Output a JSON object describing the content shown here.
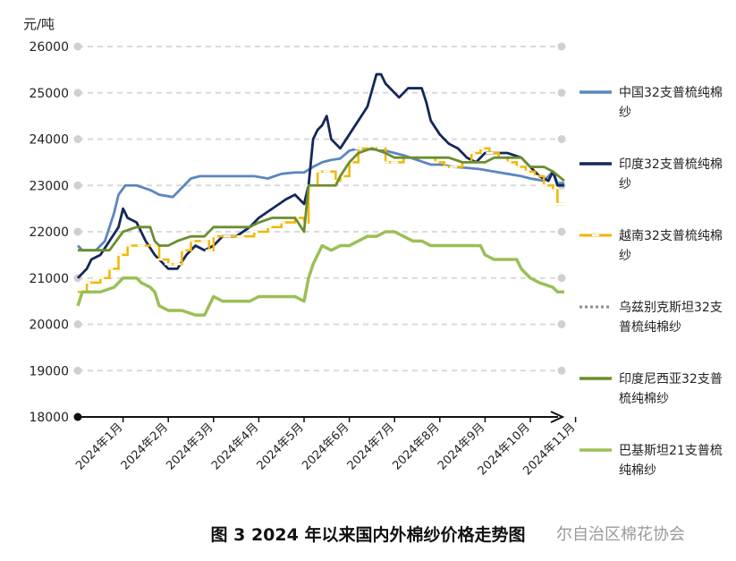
{
  "caption": "图 3 2024 年以来国内外棉纱价格走势图",
  "watermark": "尔自治区棉花协会",
  "chart_data": {
    "type": "line",
    "unit_label": "元/吨",
    "ylim": [
      18000,
      26000
    ],
    "y_ticks": [
      18000,
      19000,
      20000,
      21000,
      22000,
      23000,
      24000,
      25000,
      26000
    ],
    "x_tick_labels": [
      "2024年1月",
      "2024年2月",
      "2024年3月",
      "2024年4月",
      "2024年5月",
      "2024年6月",
      "2024年7月",
      "2024年8月",
      "2024年9月",
      "2024年10月",
      "2024年11月"
    ],
    "x_range": [
      0,
      10.8
    ],
    "grid": true,
    "legend_position": "right",
    "series": [
      {
        "name": "中国32支普梳纯棉纱",
        "color": "#5b86c1",
        "style": "solid",
        "points": [
          [
            0,
            21700
          ],
          [
            0.1,
            21600
          ],
          [
            0.4,
            21600
          ],
          [
            0.6,
            21800
          ],
          [
            0.8,
            22400
          ],
          [
            0.9,
            22800
          ],
          [
            1.05,
            23000
          ],
          [
            1.3,
            23000
          ],
          [
            1.6,
            22900
          ],
          [
            1.8,
            22800
          ],
          [
            2.1,
            22750
          ],
          [
            2.3,
            22950
          ],
          [
            2.5,
            23150
          ],
          [
            2.7,
            23200
          ],
          [
            3.0,
            23200
          ],
          [
            3.3,
            23200
          ],
          [
            3.6,
            23200
          ],
          [
            3.9,
            23200
          ],
          [
            4.2,
            23150
          ],
          [
            4.5,
            23250
          ],
          [
            4.8,
            23280
          ],
          [
            5.0,
            23280
          ],
          [
            5.2,
            23400
          ],
          [
            5.4,
            23500
          ],
          [
            5.6,
            23550
          ],
          [
            5.8,
            23580
          ],
          [
            6.0,
            23750
          ],
          [
            6.2,
            23800
          ],
          [
            6.5,
            23780
          ],
          [
            6.8,
            23750
          ],
          [
            7.0,
            23700
          ],
          [
            7.2,
            23650
          ],
          [
            7.5,
            23550
          ],
          [
            7.8,
            23450
          ],
          [
            8.0,
            23450
          ],
          [
            8.3,
            23400
          ],
          [
            8.6,
            23380
          ],
          [
            8.9,
            23350
          ],
          [
            9.2,
            23300
          ],
          [
            9.5,
            23250
          ],
          [
            9.8,
            23200
          ],
          [
            10.0,
            23150
          ],
          [
            10.3,
            23100
          ],
          [
            10.5,
            23300
          ],
          [
            10.6,
            23050
          ],
          [
            10.75,
            23050
          ]
        ]
      },
      {
        "name": "印度32支普梳纯棉纱",
        "color": "#14285a",
        "style": "solid",
        "points": [
          [
            0,
            21000
          ],
          [
            0.1,
            21100
          ],
          [
            0.2,
            21200
          ],
          [
            0.3,
            21400
          ],
          [
            0.5,
            21500
          ],
          [
            0.7,
            21800
          ],
          [
            0.9,
            22100
          ],
          [
            1.0,
            22500
          ],
          [
            1.1,
            22300
          ],
          [
            1.3,
            22200
          ],
          [
            1.5,
            21800
          ],
          [
            1.7,
            21500
          ],
          [
            1.8,
            21400
          ],
          [
            2.0,
            21200
          ],
          [
            2.2,
            21200
          ],
          [
            2.4,
            21500
          ],
          [
            2.6,
            21700
          ],
          [
            2.8,
            21600
          ],
          [
            3.0,
            21700
          ],
          [
            3.2,
            21900
          ],
          [
            3.5,
            21900
          ],
          [
            3.8,
            22100
          ],
          [
            4.0,
            22300
          ],
          [
            4.3,
            22500
          ],
          [
            4.6,
            22700
          ],
          [
            4.8,
            22800
          ],
          [
            5.0,
            22600
          ],
          [
            5.1,
            23000
          ],
          [
            5.2,
            24000
          ],
          [
            5.3,
            24200
          ],
          [
            5.4,
            24300
          ],
          [
            5.5,
            24500
          ],
          [
            5.6,
            24000
          ],
          [
            5.7,
            23900
          ],
          [
            5.8,
            23800
          ],
          [
            6.0,
            24100
          ],
          [
            6.2,
            24400
          ],
          [
            6.4,
            24700
          ],
          [
            6.6,
            25400
          ],
          [
            6.7,
            25400
          ],
          [
            6.8,
            25200
          ],
          [
            7.0,
            25000
          ],
          [
            7.1,
            24900
          ],
          [
            7.3,
            25100
          ],
          [
            7.6,
            25100
          ],
          [
            7.7,
            24800
          ],
          [
            7.8,
            24400
          ],
          [
            8.0,
            24100
          ],
          [
            8.2,
            23900
          ],
          [
            8.4,
            23800
          ],
          [
            8.6,
            23600
          ],
          [
            8.8,
            23500
          ],
          [
            9.0,
            23700
          ],
          [
            9.2,
            23700
          ],
          [
            9.5,
            23700
          ],
          [
            9.8,
            23600
          ],
          [
            10.0,
            23400
          ],
          [
            10.2,
            23200
          ],
          [
            10.4,
            23100
          ],
          [
            10.5,
            23300
          ],
          [
            10.6,
            23000
          ],
          [
            10.75,
            23000
          ]
        ]
      },
      {
        "name": "越南32支普梳纯棉纱",
        "color": "#f2b700",
        "style": "step-marker",
        "points": [
          [
            0,
            20700
          ],
          [
            0.2,
            20900
          ],
          [
            0.5,
            21000
          ],
          [
            0.7,
            21200
          ],
          [
            0.9,
            21500
          ],
          [
            1.1,
            21700
          ],
          [
            1.4,
            21700
          ],
          [
            1.7,
            21700
          ],
          [
            1.8,
            21400
          ],
          [
            2.0,
            21300
          ],
          [
            2.2,
            21300
          ],
          [
            2.3,
            21600
          ],
          [
            2.5,
            21800
          ],
          [
            2.8,
            21800
          ],
          [
            2.9,
            21600
          ],
          [
            3.0,
            21900
          ],
          [
            3.3,
            21900
          ],
          [
            3.6,
            21900
          ],
          [
            3.9,
            22000
          ],
          [
            4.2,
            22100
          ],
          [
            4.5,
            22200
          ],
          [
            4.8,
            22300
          ],
          [
            5.0,
            22200
          ],
          [
            5.1,
            23000
          ],
          [
            5.3,
            23300
          ],
          [
            5.5,
            23300
          ],
          [
            5.7,
            23100
          ],
          [
            5.8,
            23200
          ],
          [
            6.0,
            23500
          ],
          [
            6.2,
            23800
          ],
          [
            6.5,
            23800
          ],
          [
            6.7,
            23800
          ],
          [
            6.8,
            23500
          ],
          [
            7.0,
            23500
          ],
          [
            7.2,
            23600
          ],
          [
            7.5,
            23600
          ],
          [
            7.7,
            23600
          ],
          [
            7.9,
            23500
          ],
          [
            8.1,
            23400
          ],
          [
            8.3,
            23400
          ],
          [
            8.5,
            23500
          ],
          [
            8.7,
            23700
          ],
          [
            8.9,
            23800
          ],
          [
            9.1,
            23700
          ],
          [
            9.3,
            23600
          ],
          [
            9.5,
            23500
          ],
          [
            9.7,
            23400
          ],
          [
            9.9,
            23300
          ],
          [
            10.1,
            23200
          ],
          [
            10.3,
            23000
          ],
          [
            10.5,
            22900
          ],
          [
            10.6,
            22600
          ],
          [
            10.75,
            22600
          ]
        ]
      },
      {
        "name": "乌兹别克斯坦32支普梳纯棉纱",
        "color": "#8c8c8c",
        "style": "dotted",
        "points": []
      },
      {
        "name": "印度尼西亚32支普梳纯棉纱",
        "color": "#6b8e2f",
        "style": "solid",
        "points": [
          [
            0,
            21600
          ],
          [
            0.3,
            21600
          ],
          [
            0.5,
            21600
          ],
          [
            0.7,
            21600
          ],
          [
            1.0,
            22000
          ],
          [
            1.3,
            22100
          ],
          [
            1.6,
            22100
          ],
          [
            1.7,
            21800
          ],
          [
            1.8,
            21700
          ],
          [
            2.0,
            21700
          ],
          [
            2.2,
            21800
          ],
          [
            2.5,
            21900
          ],
          [
            2.8,
            21900
          ],
          [
            3.0,
            22100
          ],
          [
            3.3,
            22100
          ],
          [
            3.6,
            22100
          ],
          [
            3.8,
            22100
          ],
          [
            4.0,
            22200
          ],
          [
            4.3,
            22300
          ],
          [
            4.6,
            22300
          ],
          [
            4.8,
            22300
          ],
          [
            5.0,
            22000
          ],
          [
            5.1,
            23000
          ],
          [
            5.3,
            23000
          ],
          [
            5.5,
            23000
          ],
          [
            5.7,
            23000
          ],
          [
            5.8,
            23200
          ],
          [
            6.0,
            23500
          ],
          [
            6.2,
            23700
          ],
          [
            6.5,
            23800
          ],
          [
            6.8,
            23700
          ],
          [
            7.0,
            23600
          ],
          [
            7.3,
            23600
          ],
          [
            7.6,
            23600
          ],
          [
            7.9,
            23600
          ],
          [
            8.2,
            23600
          ],
          [
            8.5,
            23500
          ],
          [
            8.8,
            23500
          ],
          [
            9.0,
            23500
          ],
          [
            9.2,
            23600
          ],
          [
            9.5,
            23600
          ],
          [
            9.8,
            23600
          ],
          [
            10.0,
            23400
          ],
          [
            10.3,
            23400
          ],
          [
            10.5,
            23300
          ],
          [
            10.75,
            23100
          ]
        ]
      },
      {
        "name": "巴基斯坦21支普梳纯棉纱",
        "color": "#9bbf55",
        "style": "solid",
        "points": [
          [
            0,
            20400
          ],
          [
            0.1,
            20700
          ],
          [
            0.5,
            20700
          ],
          [
            0.8,
            20800
          ],
          [
            1.0,
            21000
          ],
          [
            1.3,
            21000
          ],
          [
            1.4,
            20900
          ],
          [
            1.6,
            20800
          ],
          [
            1.7,
            20700
          ],
          [
            1.8,
            20400
          ],
          [
            2.0,
            20300
          ],
          [
            2.3,
            20300
          ],
          [
            2.6,
            20200
          ],
          [
            2.8,
            20200
          ],
          [
            3.0,
            20600
          ],
          [
            3.2,
            20500
          ],
          [
            3.5,
            20500
          ],
          [
            3.8,
            20500
          ],
          [
            4.0,
            20600
          ],
          [
            4.3,
            20600
          ],
          [
            4.6,
            20600
          ],
          [
            4.8,
            20600
          ],
          [
            5.0,
            20500
          ],
          [
            5.1,
            21000
          ],
          [
            5.2,
            21300
          ],
          [
            5.4,
            21700
          ],
          [
            5.6,
            21600
          ],
          [
            5.8,
            21700
          ],
          [
            6.0,
            21700
          ],
          [
            6.2,
            21800
          ],
          [
            6.4,
            21900
          ],
          [
            6.6,
            21900
          ],
          [
            6.8,
            22000
          ],
          [
            7.0,
            22000
          ],
          [
            7.2,
            21900
          ],
          [
            7.4,
            21800
          ],
          [
            7.6,
            21800
          ],
          [
            7.8,
            21700
          ],
          [
            8.0,
            21700
          ],
          [
            8.3,
            21700
          ],
          [
            8.6,
            21700
          ],
          [
            8.9,
            21700
          ],
          [
            9.0,
            21500
          ],
          [
            9.2,
            21400
          ],
          [
            9.5,
            21400
          ],
          [
            9.7,
            21400
          ],
          [
            9.8,
            21200
          ],
          [
            10.0,
            21000
          ],
          [
            10.2,
            20900
          ],
          [
            10.5,
            20800
          ],
          [
            10.6,
            20700
          ],
          [
            10.75,
            20700
          ]
        ]
      }
    ]
  }
}
